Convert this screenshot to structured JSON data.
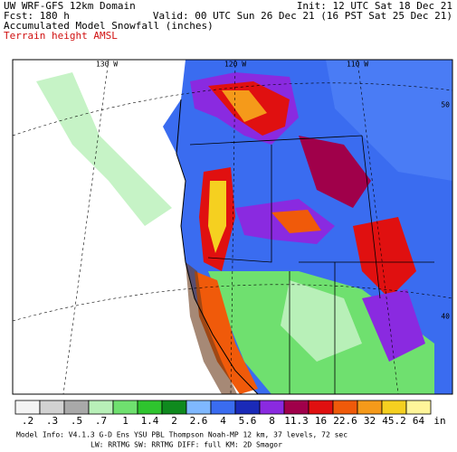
{
  "header": {
    "title": "UW WRF-GFS 12km Domain",
    "init": "Init: 12 UTC Sat 18 Dec 21",
    "forecast": "Fcst: 180 h",
    "valid": "Valid: 00 UTC Sun 26 Dec 21 (16 PST Sat 25 Dec 21)",
    "field": "Accumulated Model Snowfall (inches)",
    "overlay": "Terrain height AMSL"
  },
  "map": {
    "longitude_labels": [
      "130 W",
      "120 W",
      "110 W"
    ],
    "latitude_labels": [
      "50",
      "40"
    ]
  },
  "colorbar": {
    "labels": [
      ".2",
      ".3",
      ".5",
      ".7",
      "1",
      "1.4",
      "2",
      "2.6",
      "4",
      "5.6",
      "8",
      "11.3",
      "16",
      "22.6",
      "32",
      "45.2",
      "64"
    ],
    "unit": "in",
    "colors": [
      "#f4f4f4",
      "#d2d2d2",
      "#a9a9a9",
      "#b8f0b8",
      "#6fe06f",
      "#2ec42e",
      "#0f8a1e",
      "#7fb8ff",
      "#3a6cf0",
      "#1a2ab8",
      "#8a2ae0",
      "#a0004a",
      "#e01010",
      "#f05a0a",
      "#f59a1a",
      "#f5d020",
      "#fff59a"
    ]
  },
  "footer": {
    "model_info": "Model Info: V4.1.3   G-D Ens YSU PBL  Thompson   Noah-MP  12 km,   37 levels,  72 sec",
    "physics": "LW: RRTMG SW: RRTMG  DIFF: full  KM: 2D Smagor"
  }
}
